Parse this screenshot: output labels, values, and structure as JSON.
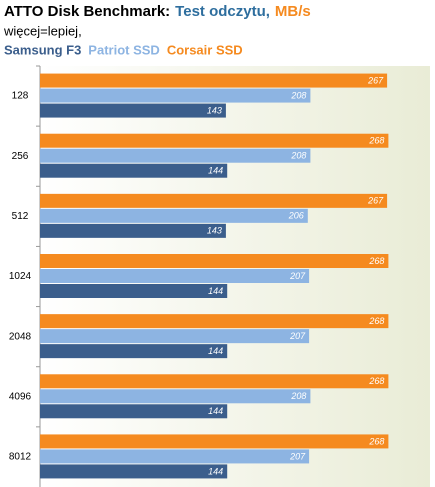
{
  "chart_data": {
    "type": "hbar",
    "title": [
      "ATTO Disk Benchmark:",
      "Test odczytu,",
      "MB/s"
    ],
    "title_colors": [
      "#000000",
      "#2e6e9e",
      "#f58a1f"
    ],
    "subtitle": "więcej=lepiej,",
    "categories": [
      "128",
      "256",
      "512",
      "1024",
      "2048",
      "4096",
      "8012"
    ],
    "series": [
      {
        "name": "Samsung F3",
        "color": "#3b5e8c",
        "values": [
          143,
          144,
          143,
          144,
          144,
          144,
          144
        ]
      },
      {
        "name": "Patriot SSD",
        "color": "#8db4e2",
        "values": [
          208,
          208,
          206,
          207,
          207,
          208,
          207
        ]
      },
      {
        "name": "Corsair SSD",
        "color": "#f58a1f",
        "values": [
          267,
          268,
          267,
          268,
          268,
          268,
          268
        ]
      }
    ],
    "xlim": [
      0,
      300
    ]
  }
}
